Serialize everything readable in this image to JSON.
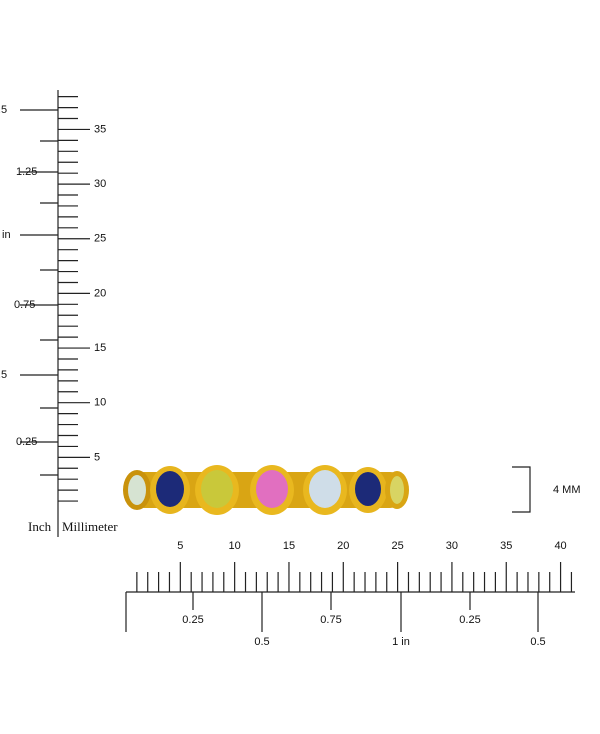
{
  "vertical_ruler": {
    "inch_labels": [
      ".5",
      "1.25",
      "in",
      "0.75",
      ".5",
      "0.25"
    ],
    "mm_labels": [
      "35",
      "30",
      "25",
      "20",
      "15",
      "10",
      "5"
    ],
    "inch_title": "Inch",
    "mm_title": "Millimeter"
  },
  "horizontal_ruler": {
    "mm_labels": [
      "5",
      "10",
      "15",
      "20",
      "25",
      "30",
      "35",
      "40"
    ],
    "inch_labels": [
      "0.25",
      "0.5",
      "0.75",
      "1 in",
      "0.25",
      "0.5"
    ]
  },
  "width_label": "4 MM"
}
